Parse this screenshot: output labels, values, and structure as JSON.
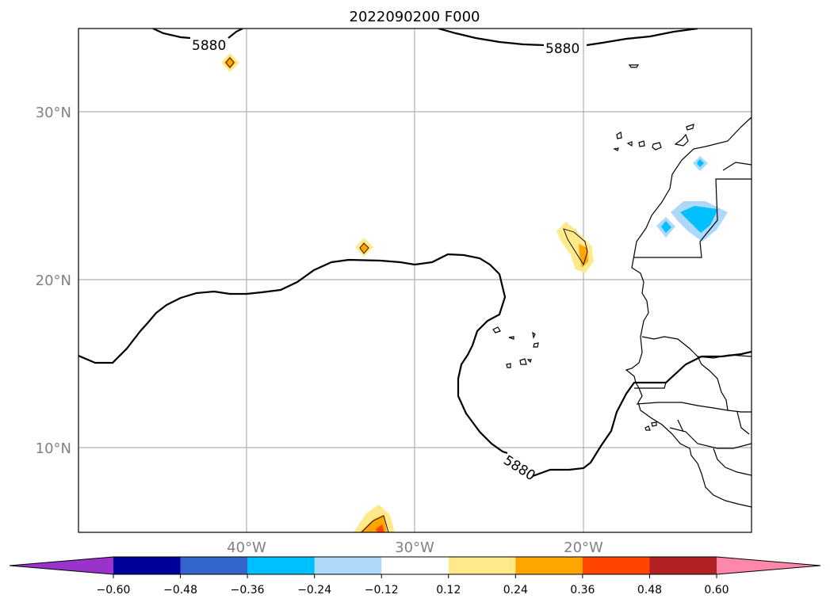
{
  "title": "2022090200 F000",
  "lat_labels": [
    "30°N",
    "20°N",
    "10°N"
  ],
  "lon_labels": [
    "40°W",
    "30°W",
    "20°W"
  ],
  "contour_label": "5880",
  "colorbar": {
    "ticks": [
      "−0.60",
      "−0.48",
      "−0.36",
      "−0.24",
      "−0.12",
      "0.12",
      "0.24",
      "0.36",
      "0.48",
      "0.60"
    ],
    "colors": [
      "#9933cc",
      "#000099",
      "#3366cc",
      "#00bfff",
      "#add8f7",
      "#ffffff",
      "#ffe98a",
      "#ffa500",
      "#ff4500",
      "#b22222",
      "#ff88aa"
    ]
  },
  "map": {
    "lon_range": [
      -50,
      -10
    ],
    "lat_range": [
      5,
      35
    ]
  }
}
